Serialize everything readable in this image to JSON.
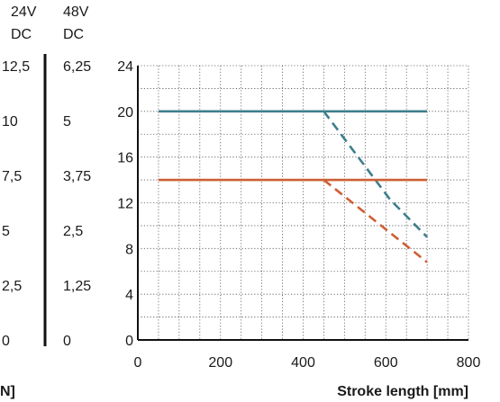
{
  "chart_data": {
    "type": "line",
    "title": "",
    "xlabel": "Stroke length [mm]",
    "ylabel_fragment": "N]",
    "x_range": [
      0,
      800
    ],
    "x_ticks": [
      0,
      200,
      400,
      600,
      800
    ],
    "y_range": [
      0,
      24
    ],
    "y_ticks": [
      0,
      4,
      8,
      12,
      16,
      20,
      24
    ],
    "grid": true,
    "secondary_axes": [
      {
        "header": [
          "24V",
          "DC"
        ],
        "ticks": [
          "12,5",
          "10",
          "7,5",
          "5",
          "2,5",
          "0"
        ],
        "values": [
          25,
          20,
          15,
          10,
          5,
          0
        ]
      },
      {
        "header": [
          "48V",
          "DC"
        ],
        "ticks": [
          "6,25",
          "5",
          "3,75",
          "2,5",
          "1,25",
          "0"
        ],
        "values": [
          25,
          20,
          15,
          10,
          5,
          0
        ]
      }
    ],
    "series": [
      {
        "color": "#3d7e8c",
        "style": "solid",
        "points": [
          [
            50,
            20
          ],
          [
            700,
            20
          ]
        ]
      },
      {
        "color": "#3d7e8c",
        "style": "dashed",
        "points": [
          [
            450,
            20
          ],
          [
            610,
            12.3
          ],
          [
            700,
            9
          ]
        ]
      },
      {
        "color": "#cf5f34",
        "style": "solid",
        "points": [
          [
            50,
            14
          ],
          [
            700,
            14
          ]
        ]
      },
      {
        "color": "#cf5f34",
        "style": "dashed",
        "points": [
          [
            450,
            14
          ],
          [
            700,
            6.8
          ]
        ]
      }
    ]
  }
}
